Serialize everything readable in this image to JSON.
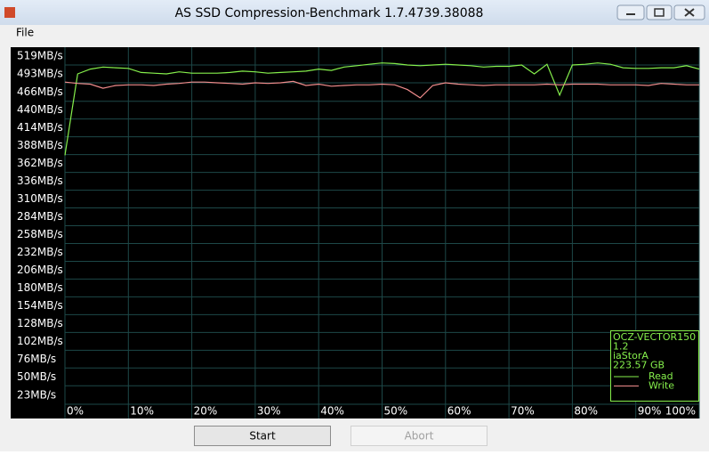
{
  "window": {
    "title": "AS SSD Compression-Benchmark 1.7.4739.38088",
    "menu": [
      "File"
    ],
    "buttons": {
      "start": "Start",
      "abort": "Abort"
    }
  },
  "chart_data": {
    "type": "line",
    "legend_info": [
      "OCZ-VECTOR150",
      "1.2",
      "iaStorA",
      "223.57 GB"
    ],
    "x": [
      0,
      2,
      4,
      6,
      8,
      10,
      12,
      14,
      16,
      18,
      20,
      22,
      24,
      26,
      28,
      30,
      32,
      34,
      36,
      38,
      40,
      42,
      44,
      46,
      48,
      50,
      52,
      54,
      56,
      58,
      60,
      62,
      64,
      66,
      68,
      70,
      72,
      74,
      76,
      78,
      80,
      82,
      84,
      86,
      88,
      90,
      92,
      94,
      96,
      98,
      100
    ],
    "series": [
      {
        "name": "Read",
        "color": "#86f04c",
        "values": [
          374,
          493,
          500,
          503,
          502,
          501,
          495,
          494,
          493,
          496,
          494,
          494,
          494,
          495,
          497,
          496,
          494,
          495,
          496,
          497,
          500,
          498,
          503,
          505,
          507,
          509,
          508,
          506,
          505,
          506,
          507,
          506,
          505,
          503,
          504,
          504,
          506,
          493,
          507,
          462,
          506,
          507,
          509,
          507,
          502,
          501,
          501,
          502,
          502,
          505,
          500
        ]
      },
      {
        "name": "Write",
        "color": "#f08c8c",
        "values": [
          481,
          479,
          478,
          472,
          476,
          477,
          477,
          476,
          478,
          479,
          481,
          481,
          480,
          479,
          478,
          480,
          479,
          480,
          482,
          476,
          478,
          475,
          476,
          477,
          477,
          478,
          477,
          470,
          458,
          476,
          480,
          478,
          477,
          476,
          477,
          477,
          477,
          477,
          478,
          477,
          478,
          478,
          478,
          477,
          477,
          477,
          476,
          479,
          478,
          477,
          477
        ]
      }
    ],
    "xlim": [
      0,
      100
    ],
    "xticks": [
      {
        "value": 0,
        "label": "0%"
      },
      {
        "value": 10,
        "label": "10%"
      },
      {
        "value": 20,
        "label": "20%"
      },
      {
        "value": 30,
        "label": "30%"
      },
      {
        "value": 40,
        "label": "40%"
      },
      {
        "value": 50,
        "label": "50%"
      },
      {
        "value": 60,
        "label": "60%"
      },
      {
        "value": 70,
        "label": "70%"
      },
      {
        "value": 80,
        "label": "80%"
      },
      {
        "value": 90,
        "label": "90%"
      },
      {
        "value": 100,
        "label": "100%"
      }
    ],
    "ylim": [
      23,
      519
    ],
    "yticks": [
      {
        "value": 519,
        "label": "519MB/s"
      },
      {
        "value": 493,
        "label": "493MB/s"
      },
      {
        "value": 466,
        "label": "466MB/s"
      },
      {
        "value": 440,
        "label": "440MB/s"
      },
      {
        "value": 414,
        "label": "414MB/s"
      },
      {
        "value": 388,
        "label": "388MB/s"
      },
      {
        "value": 362,
        "label": "362MB/s"
      },
      {
        "value": 336,
        "label": "336MB/s"
      },
      {
        "value": 310,
        "label": "310MB/s"
      },
      {
        "value": 284,
        "label": "284MB/s"
      },
      {
        "value": 258,
        "label": "258MB/s"
      },
      {
        "value": 232,
        "label": "232MB/s"
      },
      {
        "value": 206,
        "label": "206MB/s"
      },
      {
        "value": 180,
        "label": "180MB/s"
      },
      {
        "value": 154,
        "label": "154MB/s"
      },
      {
        "value": 128,
        "label": "128MB/s"
      },
      {
        "value": 102,
        "label": "102MB/s"
      },
      {
        "value": 76,
        "label": "76MB/s"
      },
      {
        "value": 50,
        "label": "50MB/s"
      },
      {
        "value": 23,
        "label": "23MB/s"
      }
    ],
    "grid": true
  }
}
